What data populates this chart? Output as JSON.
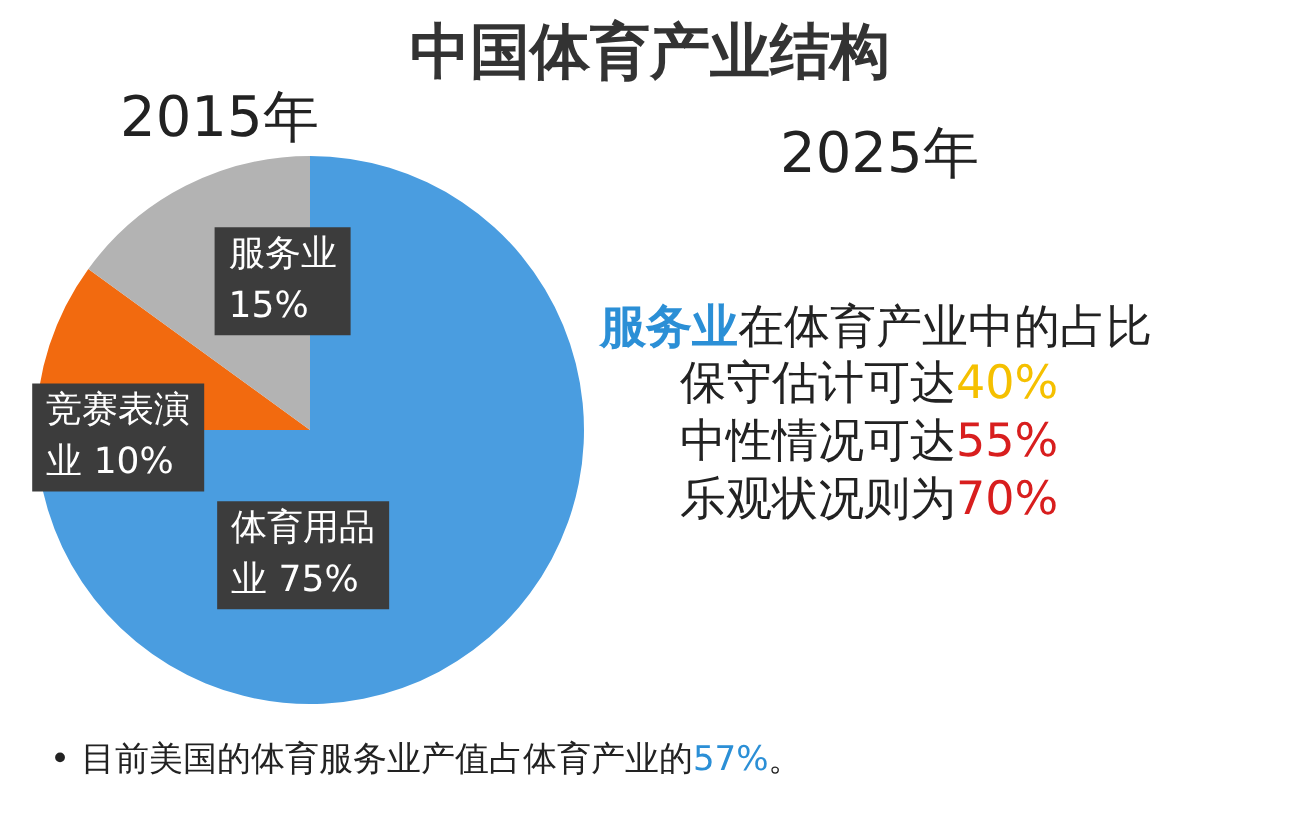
{
  "chart_data": {
    "type": "pie",
    "title": "中国体育产业结构",
    "categories": [
      "体育用品业",
      "竞赛表演业",
      "服务业"
    ],
    "values": [
      75,
      10,
      15
    ],
    "colors": [
      "#4a9de0",
      "#f26a0f",
      "#b3b3b3"
    ],
    "value_labels": [
      "75%",
      "10%",
      "15%"
    ],
    "legend": false,
    "annotations": [
      "2015年",
      "2025年",
      "服务业在体育产业中的占比",
      "保守估计可达40%",
      "中性情况可达55%",
      "乐观状况则为70%",
      "•  目前美国的体育服务业产值占体育产业的57%。"
    ]
  }
}
